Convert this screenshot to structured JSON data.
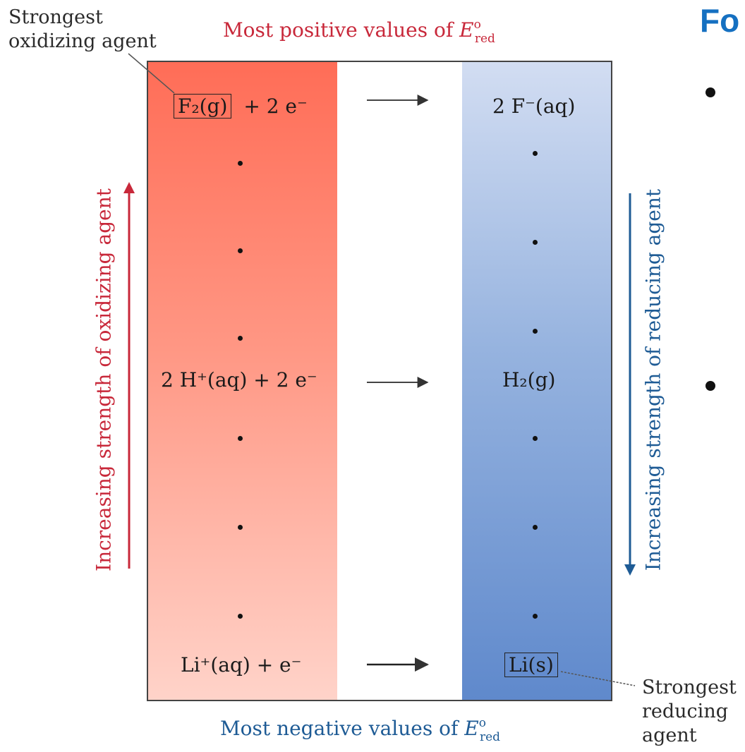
{
  "callouts": {
    "oxidizing_line1": "Strongest",
    "oxidizing_line2": "oxidizing agent",
    "reducing_line1": "Strongest",
    "reducing_line2": "reducing",
    "reducing_line3": "agent"
  },
  "header": {
    "top_label": "Most positive values of E°red",
    "top_prefix": "Most positive values of ",
    "bottom_prefix": "Most negative values of ",
    "symbol": "E",
    "sup": "o",
    "sub": "red"
  },
  "side_labels": {
    "left": "Increasing strength of oxidizing agent",
    "right": "Increasing strength of reducing agent"
  },
  "reactions": {
    "r1_left_boxed": "F₂(g)",
    "r1_left_rest": "+ 2 e⁻",
    "r1_right": "2 F⁻(aq)",
    "r2_left": "2 H⁺(aq) + 2 e⁻",
    "r2_right": "H₂(g)",
    "r3_left": "Li⁺(aq) + e⁻",
    "r3_right_boxed": "Li(s)"
  },
  "slide": {
    "title_fragment": "Fo"
  },
  "colors": {
    "oxidizing_red": "#c8283a",
    "reducing_blue": "#1e5b95",
    "title_blue": "#1570c1"
  }
}
